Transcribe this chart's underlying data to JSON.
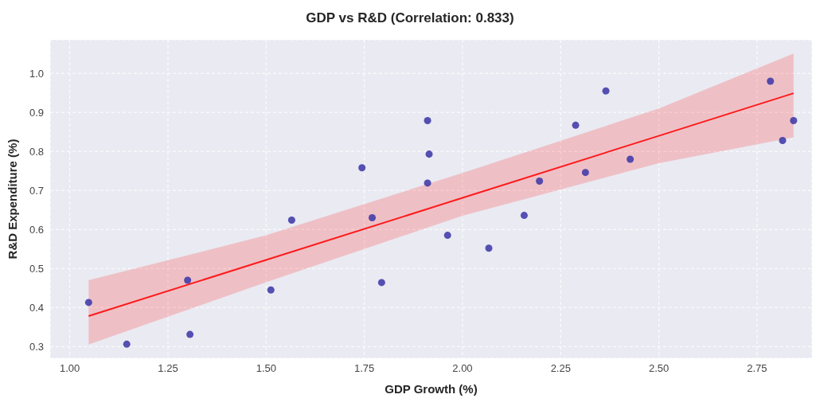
{
  "chart_data": {
    "type": "scatter",
    "title": "GDP vs R&D (Correlation: 0.833)",
    "xlabel": "GDP Growth (%)",
    "ylabel": "R&D Expenditure (%)",
    "xlim": [
      0.95,
      2.89
    ],
    "xticks": [
      {
        "value": 1,
        "label": "1.00"
      },
      {
        "value": 1.25,
        "label": "1.25"
      },
      {
        "value": 1.5,
        "label": "1.50"
      },
      {
        "value": 1.75,
        "label": "1.75"
      },
      {
        "value": 2,
        "label": "2.00"
      },
      {
        "value": 2.25,
        "label": "2.25"
      },
      {
        "value": 2.5,
        "label": "2.50"
      },
      {
        "value": 2.75,
        "label": "2.75"
      }
    ],
    "ylim": [
      0.27,
      1.086
    ],
    "yticks": [
      {
        "value": 0.3,
        "label": "0.3"
      },
      {
        "value": 0.4,
        "label": "0.4"
      },
      {
        "value": 0.5,
        "label": "0.5"
      },
      {
        "value": 0.6,
        "label": "0.6"
      },
      {
        "value": 0.7,
        "label": "0.7"
      },
      {
        "value": 0.8,
        "label": "0.8"
      },
      {
        "value": 0.9,
        "label": "0.9"
      },
      {
        "value": 1,
        "label": "1.0"
      }
    ],
    "grid": true,
    "series": [
      {
        "marker": "circle",
        "color": "#3a34a6",
        "x": [
          1.048,
          1.145,
          1.3,
          1.306,
          1.512,
          1.565,
          1.744,
          1.77,
          1.794,
          1.911,
          1.915,
          1.911,
          1.962,
          2.067,
          2.157,
          2.196,
          2.288,
          2.313,
          2.365,
          2.427,
          2.784,
          2.815,
          2.843
        ],
        "values": [
          0.413,
          0.306,
          0.47,
          0.331,
          0.445,
          0.624,
          0.758,
          0.63,
          0.464,
          0.879,
          0.793,
          0.719,
          0.585,
          0.552,
          0.636,
          0.724,
          0.867,
          0.746,
          0.955,
          0.78,
          0.98,
          0.828,
          0.879
        ]
      },
      {
        "type": "line",
        "marker": "none",
        "color": "#ff1a1a",
        "x": [
          1.048,
          1.5,
          2.0,
          2.5,
          2.843
        ],
        "values": [
          0.378,
          0.522,
          0.681,
          0.84,
          0.949
        ],
        "lower": [
          0.305,
          0.465,
          0.635,
          0.77,
          0.836
        ],
        "upper": [
          0.47,
          0.585,
          0.745,
          0.91,
          1.051
        ]
      }
    ]
  }
}
